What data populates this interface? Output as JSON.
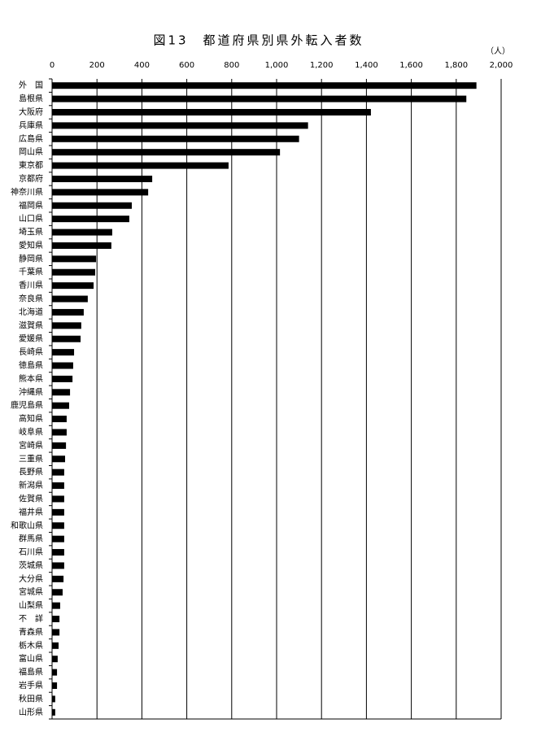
{
  "chart_data": {
    "type": "barh",
    "title": "図13　都道府県別県外転入者数",
    "unit": "（人）",
    "categories": [
      "外　国",
      "島根県",
      "大阪府",
      "兵庫県",
      "広島県",
      "岡山県",
      "東京都",
      "京都府",
      "神奈川県",
      "福岡県",
      "山口県",
      "埼玉県",
      "愛知県",
      "静岡県",
      "千葉県",
      "香川県",
      "奈良県",
      "北海道",
      "滋賀県",
      "愛媛県",
      "長崎県",
      "徳島県",
      "熊本県",
      "沖縄県",
      "鹿児島県",
      "高知県",
      "岐阜県",
      "宮崎県",
      "三重県",
      "長野県",
      "新潟県",
      "佐賀県",
      "福井県",
      "和歌山県",
      "群馬県",
      "石川県",
      "茨城県",
      "大分県",
      "宮城県",
      "山梨県",
      "不　詳",
      "青森県",
      "栃木県",
      "富山県",
      "福島県",
      "岩手県",
      "秋田県",
      "山形県"
    ],
    "values": [
      1890,
      1845,
      1420,
      1140,
      1100,
      1015,
      786,
      446,
      428,
      355,
      344,
      268,
      264,
      196,
      192,
      185,
      159,
      141,
      130,
      127,
      98,
      94,
      91,
      80,
      76,
      65,
      65,
      62,
      58,
      54,
      54,
      54,
      54,
      54,
      54,
      54,
      54,
      51,
      47,
      36,
      33,
      33,
      29,
      25,
      22,
      22,
      14,
      14
    ],
    "color": "#000000",
    "xlim": [
      0,
      2000
    ],
    "xticks": [
      0,
      200,
      400,
      600,
      800,
      {
        "value": 1000,
        "label": "1,000"
      },
      {
        "value": 1200,
        "label": "1,200"
      },
      {
        "value": 1400,
        "label": "1,400"
      },
      {
        "value": 1600,
        "label": "1,600"
      },
      {
        "value": 1800,
        "label": "1,800"
      },
      {
        "value": 2000,
        "label": "2,000"
      }
    ],
    "grid": true
  }
}
